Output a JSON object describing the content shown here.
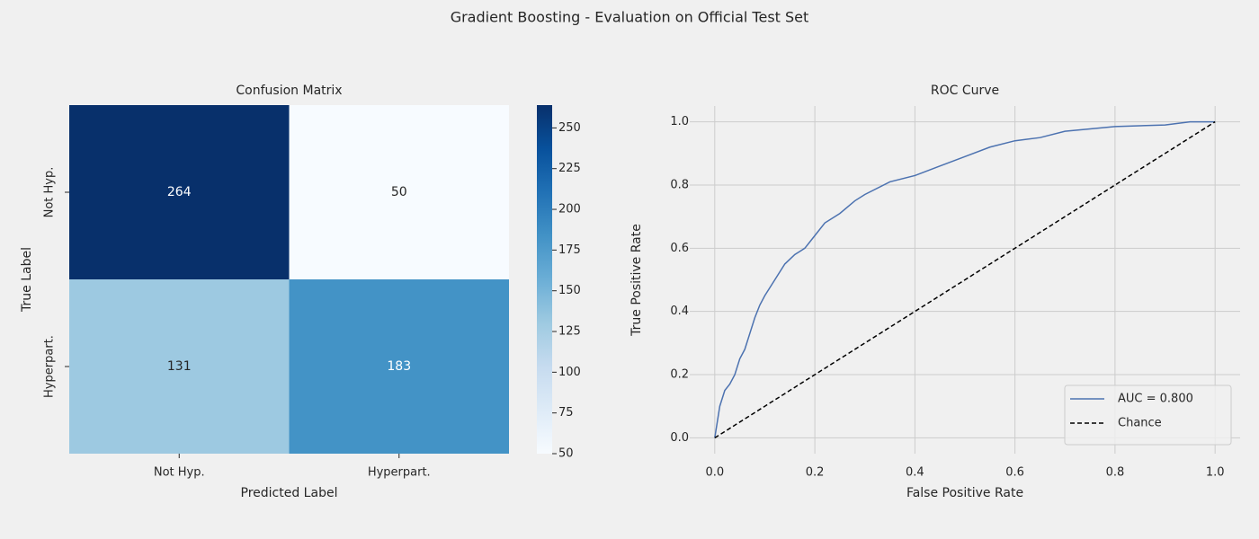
{
  "title": "Gradient Boosting - Evaluation on Official Test Set",
  "chart_data": [
    {
      "type": "heatmap",
      "title": "Confusion Matrix",
      "xlabel": "Predicted Label",
      "ylabel": "True Label",
      "x_categories": [
        "Not Hyp.",
        "Hyperpart."
      ],
      "y_categories": [
        "Not Hyp.",
        "Hyperpart."
      ],
      "values": [
        [
          264,
          50
        ],
        [
          131,
          183
        ]
      ],
      "clim": [
        50,
        264
      ],
      "cticks": [
        50,
        75,
        100,
        125,
        150,
        175,
        200,
        225,
        250
      ],
      "colormap": [
        "#f7fbff",
        "#deebf7",
        "#c6dbef",
        "#9ecae1",
        "#6baed6",
        "#4292c6",
        "#2171b5",
        "#08519c",
        "#08306b"
      ]
    },
    {
      "type": "line",
      "title": "ROC Curve",
      "xlabel": "False Positive Rate",
      "ylabel": "True Positive Rate",
      "xlim": [
        -0.05,
        1.05
      ],
      "ylim": [
        -0.05,
        1.05
      ],
      "xticks": [
        {
          "value": 0,
          "label": "0.0"
        },
        0.2,
        0.4,
        0.6,
        0.8,
        {
          "value": 1,
          "label": "1.0"
        }
      ],
      "yticks": [
        {
          "value": 0,
          "label": "0.0"
        },
        0.2,
        0.4,
        0.6,
        0.8,
        {
          "value": 1,
          "label": "1.0"
        }
      ],
      "grid": true,
      "legend": "lower right",
      "series": [
        {
          "name": "AUC = 0.800",
          "color": "#4c72b0",
          "dash": false,
          "x": [
            0,
            0.005,
            0.01,
            0.02,
            0.03,
            0.04,
            0.05,
            0.06,
            0.07,
            0.08,
            0.09,
            0.1,
            0.12,
            0.14,
            0.16,
            0.18,
            0.2,
            0.22,
            0.25,
            0.28,
            0.3,
            0.35,
            0.4,
            0.45,
            0.5,
            0.55,
            0.6,
            0.65,
            0.7,
            0.8,
            0.9,
            0.95,
            1.0
          ],
          "y": [
            0,
            0.05,
            0.1,
            0.15,
            0.17,
            0.2,
            0.25,
            0.28,
            0.33,
            0.38,
            0.42,
            0.45,
            0.5,
            0.55,
            0.58,
            0.6,
            0.64,
            0.68,
            0.71,
            0.75,
            0.77,
            0.81,
            0.83,
            0.86,
            0.89,
            0.92,
            0.94,
            0.95,
            0.97,
            0.985,
            0.99,
            1.0,
            1.0
          ]
        },
        {
          "name": "Chance",
          "color": "#000000",
          "dash": true,
          "x": [
            0,
            1
          ],
          "y": [
            0,
            1
          ]
        }
      ]
    }
  ]
}
